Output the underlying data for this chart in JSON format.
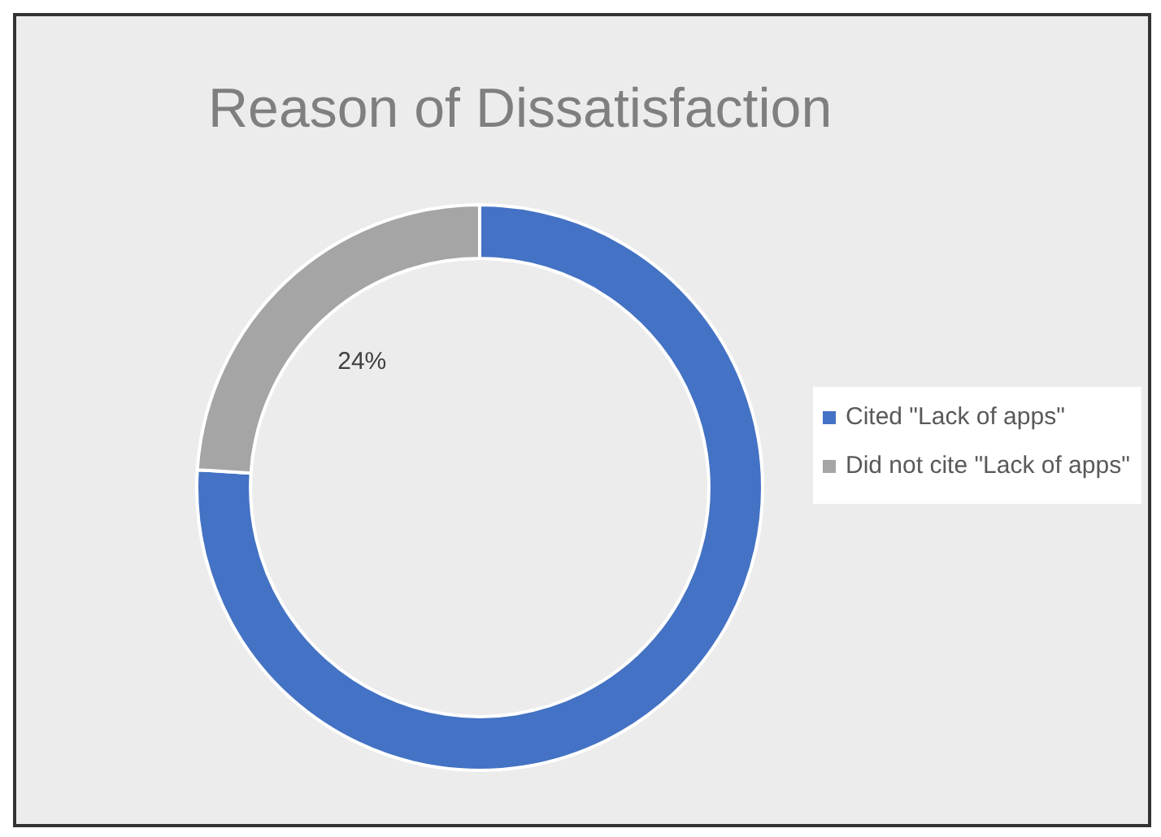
{
  "chart_data": {
    "type": "donut",
    "title": "Reason of Dissatisfaction",
    "categories": [
      "Cited \"Lack of apps\"",
      "Did not cite \"Lack of apps\""
    ],
    "values": [
      76,
      24
    ],
    "colors": [
      "#4472c4",
      "#a5a5a5"
    ],
    "value_labels": [
      null,
      "24%"
    ],
    "legend": "right"
  }
}
